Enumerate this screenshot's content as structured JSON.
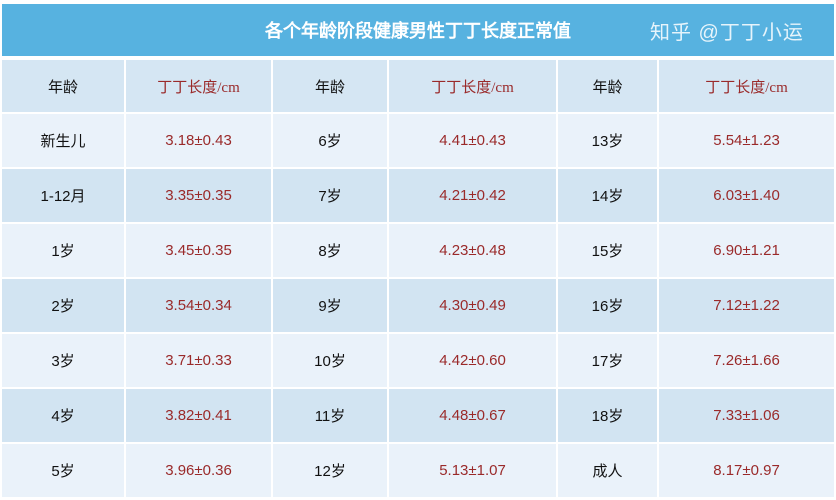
{
  "title": "各个年龄阶段健康男性丁丁长度正常值",
  "headers": [
    "年龄",
    "丁丁长度/cm",
    "年龄",
    "丁丁长度/cm",
    "年龄",
    "丁丁长度/cm"
  ],
  "rows": [
    [
      "新生儿",
      "3.18±0.43",
      "6岁",
      "4.41±0.43",
      "13岁",
      "5.54±1.23"
    ],
    [
      "1-12月",
      "3.35±0.35",
      "7岁",
      "4.21±0.42",
      "14岁",
      "6.03±1.40"
    ],
    [
      "1岁",
      "3.45±0.35",
      "8岁",
      "4.23±0.48",
      "15岁",
      "6.90±1.21"
    ],
    [
      "2岁",
      "3.54±0.34",
      "9岁",
      "4.30±0.49",
      "16岁",
      "7.12±1.22"
    ],
    [
      "3岁",
      "3.71±0.33",
      "10岁",
      "4.42±0.60",
      "17岁",
      "7.26±1.66"
    ],
    [
      "4岁",
      "3.82±0.41",
      "11岁",
      "4.48±0.67",
      "18岁",
      "7.33±1.06"
    ],
    [
      "5岁",
      "3.96±0.36",
      "12岁",
      "5.13±1.07",
      "成人",
      "8.17±0.97"
    ]
  ],
  "watermark": "知乎 @丁丁小运",
  "colors": {
    "title_bg": "#57b2e0",
    "value_text": "#9a2a2a"
  }
}
